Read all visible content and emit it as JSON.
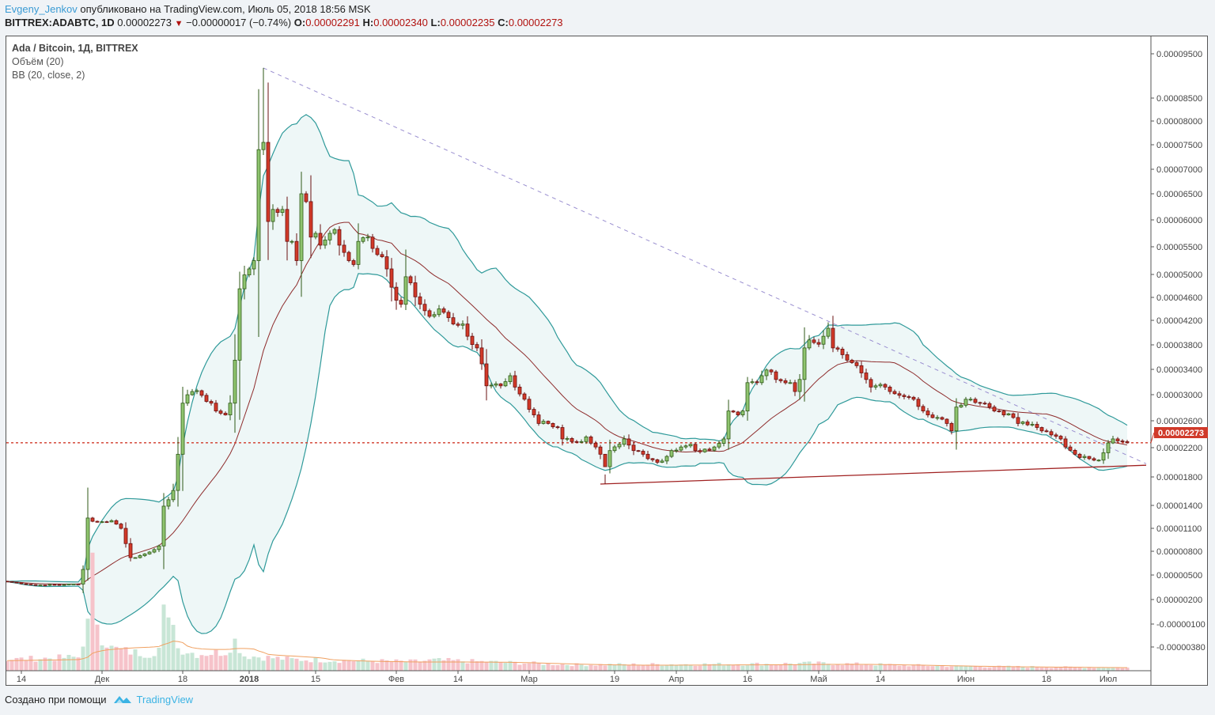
{
  "header": {
    "author": "Evgeny_Jenkov",
    "published": "опубликовано на TradingView.com, Июль 05, 2018 18:56 MSK",
    "symbol": "BITTREX:ADABTC, 1D",
    "last": "0.00002273",
    "change": "−0.00000017 (−0.74%)",
    "o_label": "O:",
    "o_value": "0.00002291",
    "h_label": "H:",
    "h_value": "0.00002340",
    "l_label": "L:",
    "l_value": "0.00002235",
    "c_label": "C:",
    "c_value": "0.00002273"
  },
  "legend": {
    "title": "Ada / Bitcoin, 1Д, BITTREX",
    "volume": "Объём (20)",
    "bb": "BB (20, close, 2)"
  },
  "footer": {
    "created_with": "Создано при помощи",
    "brand": "TradingView"
  },
  "colors": {
    "up_fill": "#8fc46f",
    "up_border": "#2f5a17",
    "down_fill": "#d23a29",
    "down_border": "#6a1010",
    "bb_band": "#2f9a9a",
    "bb_fill": "#eef7f7",
    "bb_basis": "#8e2c2c",
    "vol_up": "#c8e6d6",
    "vol_down": "#f6c3ca",
    "vol_ma": "#f0a060",
    "trend_dashed": "#9a8fd0",
    "support": "#a02020",
    "price_line": "#d03a2a"
  },
  "chart_data": {
    "type": "candlestick",
    "title": "Ada / Bitcoin, 1Д, BITTREX",
    "price_unit": "satoshi (1e-8 BTC)",
    "y_scale": "log-like",
    "y_ticks": [
      "0.00009500",
      "0.00008500",
      "0.00008000",
      "0.00007500",
      "0.00007000",
      "0.00006500",
      "0.00006000",
      "0.00005500",
      "0.00005000",
      "0.00004600",
      "0.00004200",
      "0.00003800",
      "0.00003400",
      "0.00003000",
      "0.00002600",
      "0.00002200",
      "0.00001800",
      "0.00001400",
      "0.00001100",
      "0.00000800",
      "0.00000500",
      "0.00000200",
      "-0.00000100",
      "-0.00000380"
    ],
    "y_tick_values": [
      9500,
      8500,
      8000,
      7500,
      7000,
      6500,
      6000,
      5500,
      5000,
      4600,
      4200,
      3800,
      3400,
      3000,
      2600,
      2200,
      1800,
      1400,
      1100,
      800,
      500,
      200,
      -100,
      -380
    ],
    "x_ticks": [
      {
        "label": "14",
        "day": 3
      },
      {
        "label": "Дек",
        "day": 20
      },
      {
        "label": "18",
        "day": 37
      },
      {
        "label": "2018",
        "day": 51,
        "bold": true
      },
      {
        "label": "15",
        "day": 65
      },
      {
        "label": "Фев",
        "day": 82
      },
      {
        "label": "14",
        "day": 95
      },
      {
        "label": "Мар",
        "day": 110
      },
      {
        "label": "19",
        "day": 128
      },
      {
        "label": "Апр",
        "day": 141
      },
      {
        "label": "16",
        "day": 156
      },
      {
        "label": "Май",
        "day": 171
      },
      {
        "label": "14",
        "day": 184
      },
      {
        "label": "Июн",
        "day": 202
      },
      {
        "label": "18",
        "day": 219
      },
      {
        "label": "Июл",
        "day": 232
      }
    ],
    "close_keypoints": [
      [
        0,
        420
      ],
      [
        6,
        375
      ],
      [
        15,
        390
      ],
      [
        16,
        570
      ],
      [
        17,
        1235
      ],
      [
        19,
        1180
      ],
      [
        22,
        1200
      ],
      [
        24,
        1100
      ],
      [
        26,
        720
      ],
      [
        27,
        720
      ],
      [
        30,
        790
      ],
      [
        32,
        870
      ],
      [
        33,
        1390
      ],
      [
        35,
        1610
      ],
      [
        36,
        2110
      ],
      [
        37,
        2870
      ],
      [
        39,
        3050
      ],
      [
        41,
        2990
      ],
      [
        43,
        2870
      ],
      [
        44,
        2750
      ],
      [
        46,
        2690
      ],
      [
        47,
        2870
      ],
      [
        48,
        3550
      ],
      [
        49,
        4750
      ],
      [
        51,
        5100
      ],
      [
        52,
        5250
      ],
      [
        53,
        7400
      ],
      [
        54,
        7550
      ],
      [
        55,
        5970
      ],
      [
        56,
        6200
      ],
      [
        58,
        6200
      ],
      [
        59,
        5600
      ],
      [
        60,
        5600
      ],
      [
        61,
        5250
      ],
      [
        62,
        6500
      ],
      [
        63,
        6350
      ],
      [
        64,
        5680
      ],
      [
        65,
        5750
      ],
      [
        66,
        5530
      ],
      [
        68,
        5750
      ],
      [
        69,
        5820
      ],
      [
        70,
        5530
      ],
      [
        72,
        5250
      ],
      [
        73,
        5180
      ],
      [
        74,
        5600
      ],
      [
        76,
        5680
      ],
      [
        77,
        5470
      ],
      [
        79,
        5320
      ],
      [
        80,
        5100
      ],
      [
        82,
        4550
      ],
      [
        83,
        4480
      ],
      [
        84,
        4960
      ],
      [
        86,
        4610
      ],
      [
        87,
        4480
      ],
      [
        89,
        4270
      ],
      [
        91,
        4400
      ],
      [
        92,
        4340
      ],
      [
        94,
        4140
      ],
      [
        96,
        4140
      ],
      [
        97,
        3940
      ],
      [
        99,
        3750
      ],
      [
        100,
        3490
      ],
      [
        101,
        3140
      ],
      [
        102,
        3150
      ],
      [
        104,
        3140
      ],
      [
        106,
        3300
      ],
      [
        107,
        3120
      ],
      [
        109,
        2930
      ],
      [
        111,
        2690
      ],
      [
        112,
        2560
      ],
      [
        114,
        2560
      ],
      [
        116,
        2500
      ],
      [
        117,
        2330
      ],
      [
        119,
        2290
      ],
      [
        121,
        2290
      ],
      [
        122,
        2360
      ],
      [
        124,
        2210
      ],
      [
        125,
        2110
      ],
      [
        126,
        1940
      ],
      [
        127,
        2160
      ],
      [
        129,
        2250
      ],
      [
        130,
        2330
      ],
      [
        132,
        2160
      ],
      [
        134,
        2110
      ],
      [
        135,
        2050
      ],
      [
        137,
        2000
      ],
      [
        139,
        2080
      ],
      [
        140,
        2160
      ],
      [
        142,
        2210
      ],
      [
        144,
        2250
      ],
      [
        145,
        2160
      ],
      [
        147,
        2180
      ],
      [
        149,
        2210
      ],
      [
        151,
        2330
      ],
      [
        152,
        2750
      ],
      [
        154,
        2690
      ],
      [
        155,
        2750
      ],
      [
        156,
        3190
      ],
      [
        158,
        3190
      ],
      [
        159,
        3300
      ],
      [
        160,
        3390
      ],
      [
        162,
        3240
      ],
      [
        163,
        3220
      ],
      [
        165,
        3190
      ],
      [
        166,
        3050
      ],
      [
        167,
        3240
      ],
      [
        168,
        3750
      ],
      [
        169,
        3880
      ],
      [
        171,
        3810
      ],
      [
        172,
        3940
      ],
      [
        173,
        4070
      ],
      [
        174,
        3750
      ],
      [
        175,
        3730
      ],
      [
        177,
        3550
      ],
      [
        178,
        3510
      ],
      [
        179,
        3460
      ],
      [
        181,
        3240
      ],
      [
        182,
        3120
      ],
      [
        183,
        3140
      ],
      [
        185,
        3120
      ],
      [
        186,
        3050
      ],
      [
        188,
        2990
      ],
      [
        190,
        2960
      ],
      [
        191,
        2930
      ],
      [
        193,
        2750
      ],
      [
        194,
        2690
      ],
      [
        196,
        2650
      ],
      [
        198,
        2560
      ],
      [
        199,
        2450
      ],
      [
        200,
        2810
      ],
      [
        202,
        2930
      ],
      [
        203,
        2930
      ],
      [
        205,
        2870
      ],
      [
        207,
        2810
      ],
      [
        208,
        2750
      ],
      [
        210,
        2690
      ],
      [
        212,
        2650
      ],
      [
        213,
        2560
      ],
      [
        215,
        2540
      ],
      [
        217,
        2500
      ],
      [
        218,
        2450
      ],
      [
        220,
        2390
      ],
      [
        222,
        2330
      ],
      [
        223,
        2210
      ],
      [
        225,
        2110
      ],
      [
        227,
        2080
      ],
      [
        228,
        2050
      ],
      [
        230,
        2030
      ],
      [
        231,
        2130
      ],
      [
        232,
        2270
      ],
      [
        233,
        2330
      ],
      [
        235,
        2290
      ],
      [
        236,
        2273
      ]
    ],
    "notable_highs": [
      [
        53,
        8700
      ],
      [
        54,
        9180
      ],
      [
        55,
        8850
      ],
      [
        62,
        6950
      ],
      [
        84,
        5450
      ],
      [
        126,
        1700
      ]
    ],
    "volume_keypoints": [
      [
        0,
        15
      ],
      [
        15,
        18
      ],
      [
        16,
        40
      ],
      [
        17,
        60
      ],
      [
        18,
        130
      ],
      [
        19,
        70
      ],
      [
        20,
        45
      ],
      [
        22,
        30
      ],
      [
        26,
        25
      ],
      [
        30,
        22
      ],
      [
        32,
        30
      ],
      [
        33,
        75
      ],
      [
        34,
        60
      ],
      [
        35,
        75
      ],
      [
        36,
        30
      ],
      [
        40,
        22
      ],
      [
        46,
        25
      ],
      [
        48,
        40
      ],
      [
        50,
        20
      ],
      [
        60,
        15
      ],
      [
        85,
        12
      ],
      [
        90,
        14
      ],
      [
        120,
        8
      ],
      [
        160,
        9
      ],
      [
        170,
        10
      ],
      [
        200,
        6
      ],
      [
        236,
        4
      ]
    ],
    "trendlines": [
      {
        "name": "descending-resistance",
        "style": "dashed",
        "from": [
          54,
          9180
        ],
        "to": [
          240,
          1980
        ]
      },
      {
        "name": "ascending-support",
        "style": "solid",
        "from": [
          125,
          1700
        ],
        "to": [
          240,
          1960
        ]
      }
    ],
    "last_price": 2273,
    "last_price_label": "0.00002273",
    "indicators": [
      "Volume (20) with MA",
      "Bollinger Bands (20, close, 2)"
    ]
  }
}
